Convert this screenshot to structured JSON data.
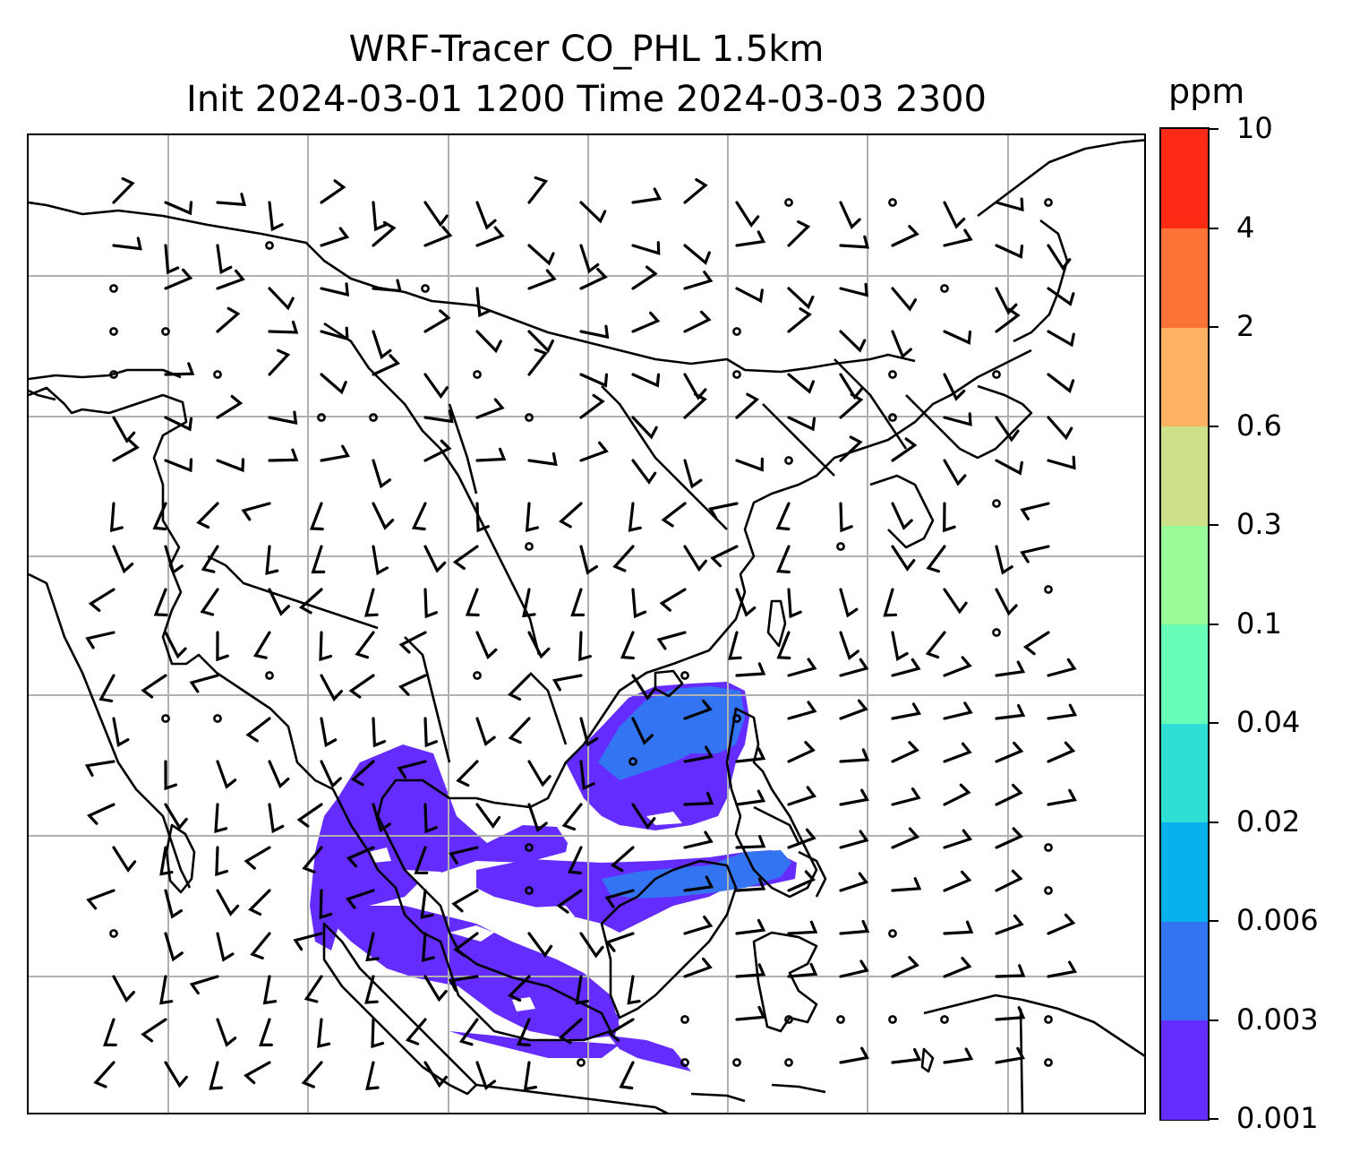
{
  "title": {
    "line1": "WRF-Tracer CO_PHL 1.5km",
    "line2": "Init 2024-03-01 1200 Time 2024-03-03 2300"
  },
  "colorbar": {
    "units": "ppm",
    "ticks": [
      "0.001",
      "0.003",
      "0.006",
      "0.02",
      "0.04",
      "0.1",
      "0.3",
      "0.6",
      "2",
      "4",
      "10"
    ],
    "colors": [
      "#642cff",
      "#3374f2",
      "#06b1ed",
      "#2fdfd6",
      "#68feb7",
      "#9afc98",
      "#cfe08a",
      "#fdb163",
      "#fe7336",
      "#fd2b16"
    ]
  },
  "map": {
    "gridlines": true,
    "coastline_color": "#000000",
    "gridline_color": "#b0b0b0",
    "plume_colors": {
      "base": "#642cff",
      "higher": "#3374f2",
      "peak": "#06b1ed"
    },
    "wind_symbols": [
      "wind-barb",
      "calm-circle"
    ]
  }
}
